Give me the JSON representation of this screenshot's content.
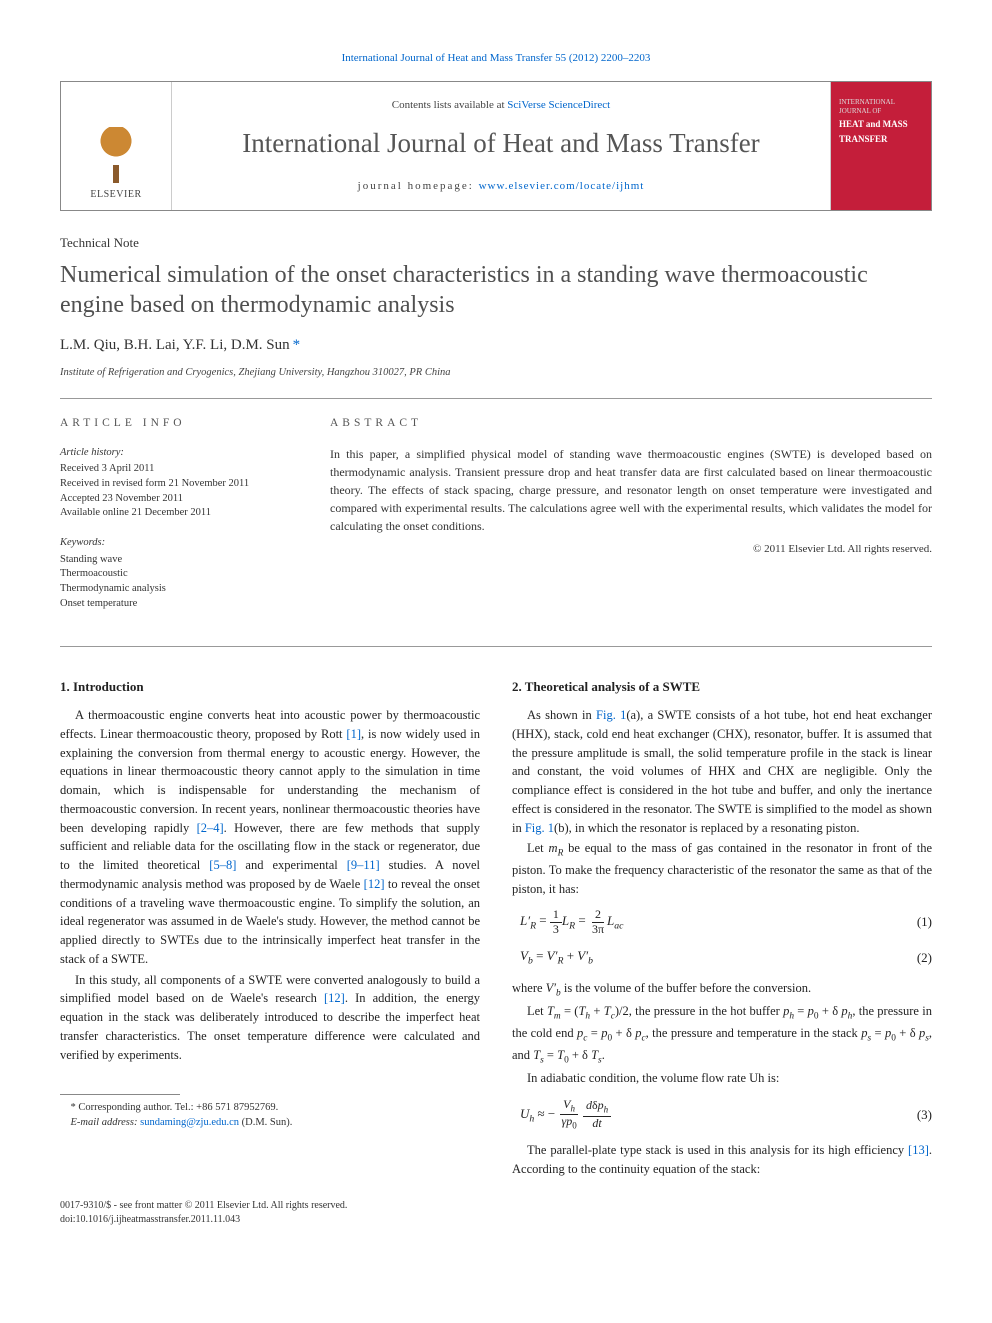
{
  "journal_ref": "International Journal of Heat and Mass Transfer 55 (2012) 2200–2203",
  "banner": {
    "contents_prefix": "Contents lists available at ",
    "contents_link": "SciVerse ScienceDirect",
    "journal_title": "International Journal of Heat and Mass Transfer",
    "homepage_prefix": "journal homepage: ",
    "homepage_link": "www.elsevier.com/locate/ijhmt",
    "publisher_name": "ELSEVIER",
    "cover_line1": "INTERNATIONAL JOURNAL OF",
    "cover_line2": "HEAT and MASS",
    "cover_line3": "TRANSFER"
  },
  "article_type": "Technical Note",
  "title": "Numerical simulation of the onset characteristics in a standing wave thermoacoustic engine based on thermodynamic analysis",
  "authors": "L.M. Qiu, B.H. Lai, Y.F. Li, D.M. Sun",
  "corr_marker": "*",
  "affiliation": "Institute of Refrigeration and Cryogenics, Zhejiang University, Hangzhou 310027, PR China",
  "info": {
    "label": "ARTICLE INFO",
    "history_label": "Article history:",
    "h1": "Received 3 April 2011",
    "h2": "Received in revised form 21 November 2011",
    "h3": "Accepted 23 November 2011",
    "h4": "Available online 21 December 2011",
    "keywords_label": "Keywords:",
    "k1": "Standing wave",
    "k2": "Thermoacoustic",
    "k3": "Thermodynamic analysis",
    "k4": "Onset temperature"
  },
  "abstract": {
    "label": "ABSTRACT",
    "text": "In this paper, a simplified physical model of standing wave thermoacoustic engines (SWTE) is developed based on thermodynamic analysis. Transient pressure drop and heat transfer data are first calculated based on linear thermoacoustic theory. The effects of stack spacing, charge pressure, and resonator length on onset temperature were investigated and compared with experimental results. The calculations agree well with the experimental results, which validates the model for calculating the onset conditions.",
    "copyright": "© 2011 Elsevier Ltd. All rights reserved."
  },
  "s1": {
    "heading": "1. Introduction",
    "p1a": "A thermoacoustic engine converts heat into acoustic power by thermoacoustic effects. Linear thermoacoustic theory, proposed by Rott ",
    "r1": "[1]",
    "p1b": ", is now widely used in explaining the conversion from thermal energy to acoustic energy. However, the equations in linear thermoacoustic theory cannot apply to the simulation in time domain, which is indispensable for understanding the mechanism of thermoacoustic conversion. In recent years, nonlinear thermoacoustic theories have been developing rapidly ",
    "r2": "[2–4]",
    "p1c": ". However, there are few methods that supply sufficient and reliable data for the oscillating flow in the stack or regenerator, due to the limited theoretical ",
    "r3": "[5–8]",
    "p1d": " and experimental ",
    "r4": "[9–11]",
    "p1e": " studies. A novel thermodynamic analysis method was proposed by de Waele ",
    "r5": "[12]",
    "p1f": " to reveal the onset conditions of a traveling wave thermoacoustic engine. To simplify the solution, an ideal regenerator was assumed in de Waele's study. However, the method cannot be applied directly to SWTEs due to the intrinsically imperfect heat transfer in the stack of a SWTE.",
    "p2a": "In this study, all components of a SWTE were converted analogously to build a simplified model based on de Waele's research ",
    "r6": "[12]",
    "p2b": ". In addition, the energy equation in the stack was deliberately introduced to describe the imperfect heat transfer characteristics. The onset temperature difference were calculated and verified by experiments."
  },
  "s2": {
    "heading": "2. Theoretical analysis of a SWTE",
    "p1a": "As shown in ",
    "rf1": "Fig. 1",
    "p1b": "(a), a SWTE consists of a hot tube, hot end heat exchanger (HHX), stack, cold end heat exchanger (CHX), resonator, buffer. It is assumed that the pressure amplitude is small, the solid temperature profile in the stack is linear and constant, the void volumes of HHX and CHX are negligible. Only the compliance effect is considered in the hot tube and buffer, and only the inertance effect is considered in the resonator. The SWTE is simplified to the model as shown in ",
    "rf2": "Fig. 1",
    "p1c": "(b), in which the resonator is replaced by a resonating piston.",
    "p2": "Let mR be equal to the mass of gas contained in the resonator in front of the piston. To make the frequency characteristic of the resonator the same as that of the piston, it has:",
    "p3": "where V′b is the volume of the buffer before the conversion.",
    "p4": "Let Tm = (Th + Tc)/2, the pressure in the hot buffer ph = p0 + δ ph, the pressure in the cold end pc = p0 + δ pc, the pressure and temperature in the stack ps = p0 + δ ps, and Ts = T0 + δ Ts.",
    "p5": "In adiabatic condition, the volume flow rate Uh is:",
    "p6a": "The parallel-plate type stack is used in this analysis for its high efficiency ",
    "r13": "[13]",
    "p6b": ". According to the continuity equation of the stack:"
  },
  "eq": {
    "n1": "(1)",
    "n2": "(2)",
    "n3": "(3)"
  },
  "footnotes": {
    "corr": "* Corresponding author. Tel.: +86 571 87952769.",
    "email_label": "E-mail address: ",
    "email": "sundaming@zju.edu.cn",
    "email_who": " (D.M. Sun)."
  },
  "bottom": {
    "line1": "0017-9310/$ - see front matter © 2011 Elsevier Ltd. All rights reserved.",
    "line2": "doi:10.1016/j.ijheatmasstransfer.2011.11.043"
  },
  "colors": {
    "link": "#0066cc",
    "cover_red": "#c41e3a",
    "text": "#222222",
    "rule": "#999999"
  }
}
